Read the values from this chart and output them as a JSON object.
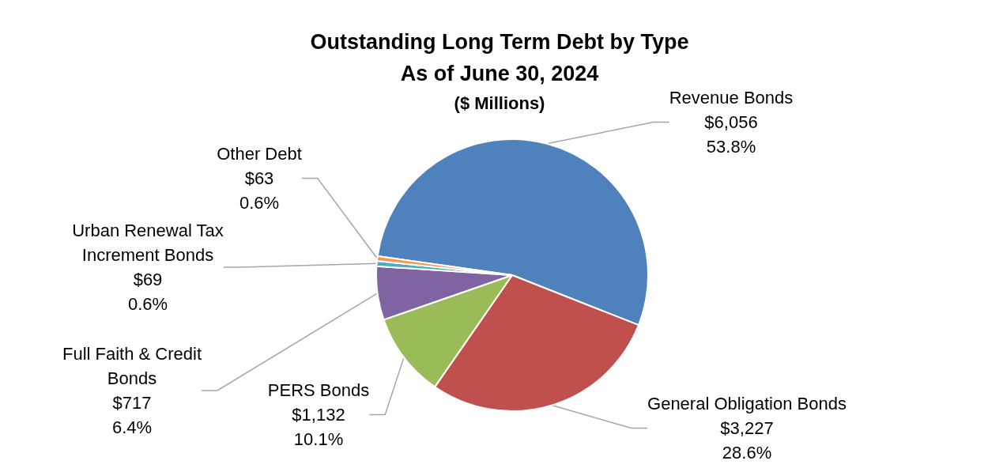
{
  "chart_data": {
    "type": "pie",
    "title": "Outstanding Long Term Debt by Type\nAs of June 30, 2024",
    "subtitle": "($ Millions)",
    "categories": [
      "Revenue Bonds",
      "General Obligation Bonds",
      "PERS Bonds",
      "Full Faith & Credit\nBonds",
      "Urban Renewal Tax\nIncrement Bonds",
      "Other Debt"
    ],
    "values": [
      6056,
      3227,
      1132,
      717,
      69,
      63
    ],
    "value_labels": [
      "$6,056\n53.8%",
      "$3,227\n28.6%",
      "$1,132\n10.1%",
      "$717\n6.4%",
      "$69\n0.6%",
      "$63\n0.6%"
    ],
    "colors": [
      "#4f81bd",
      "#c0504d",
      "#9bbb59",
      "#8064a2",
      "#4bacc6",
      "#f79646"
    ],
    "legend": false
  }
}
